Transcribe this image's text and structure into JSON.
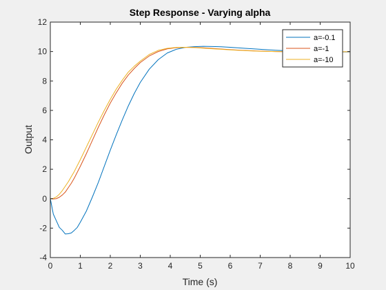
{
  "chart_data": {
    "type": "line",
    "title": "Step Response - Varying alpha",
    "xlabel": "Time (s)",
    "ylabel": "Output",
    "xlim": [
      0,
      10
    ],
    "ylim": [
      -4,
      12
    ],
    "xticks": [
      "0",
      "1",
      "2",
      "3",
      "4",
      "5",
      "6",
      "7",
      "8",
      "9",
      "10"
    ],
    "yticks": [
      "-4",
      "-2",
      "0",
      "2",
      "4",
      "6",
      "8",
      "10",
      "12"
    ],
    "grid": false,
    "legend_position": "top-right",
    "series": [
      {
        "name": "a=-0.1",
        "color": "#0072bd",
        "x": [
          0,
          0.1,
          0.2,
          0.3,
          0.4,
          0.5,
          0.6,
          0.7,
          0.8,
          0.9,
          1.0,
          1.2,
          1.4,
          1.6,
          1.8,
          2.0,
          2.2,
          2.4,
          2.6,
          2.8,
          3.0,
          3.3,
          3.6,
          3.9,
          4.2,
          4.5,
          4.8,
          5.1,
          5.4,
          5.7,
          6.0,
          6.5,
          7.0,
          7.5,
          8.0,
          8.5,
          9.0,
          9.5,
          10.0
        ],
        "y": [
          0,
          -1.05,
          -1.5,
          -1.95,
          -2.15,
          -2.4,
          -2.38,
          -2.33,
          -2.15,
          -1.95,
          -1.6,
          -0.85,
          0.1,
          1.1,
          2.2,
          3.3,
          4.35,
          5.35,
          6.3,
          7.15,
          7.9,
          8.8,
          9.45,
          9.9,
          10.15,
          10.28,
          10.33,
          10.35,
          10.34,
          10.32,
          10.29,
          10.22,
          10.15,
          10.09,
          10.04,
          10.0,
          9.98,
          9.97,
          9.97
        ]
      },
      {
        "name": "a=-1",
        "color": "#d95319",
        "x": [
          0,
          0.1,
          0.2,
          0.3,
          0.4,
          0.5,
          0.6,
          0.7,
          0.8,
          1.0,
          1.2,
          1.4,
          1.6,
          1.8,
          2.0,
          2.2,
          2.4,
          2.6,
          2.8,
          3.0,
          3.3,
          3.6,
          3.9,
          4.2,
          4.5,
          4.8,
          5.1,
          5.4,
          5.7,
          6.0,
          6.5,
          7.0,
          7.5,
          8.0,
          8.5,
          9.0,
          9.5,
          10.0
        ],
        "y": [
          0,
          -0.02,
          0.0,
          0.1,
          0.25,
          0.45,
          0.75,
          1.05,
          1.4,
          2.2,
          3.05,
          3.95,
          4.85,
          5.7,
          6.5,
          7.2,
          7.85,
          8.4,
          8.85,
          9.25,
          9.7,
          10.0,
          10.18,
          10.26,
          10.29,
          10.28,
          10.25,
          10.21,
          10.17,
          10.13,
          10.07,
          10.03,
          10.0,
          9.99,
          9.98,
          9.98,
          9.98,
          9.99
        ]
      },
      {
        "name": "a=-10",
        "color": "#edb120",
        "x": [
          0,
          0.1,
          0.2,
          0.3,
          0.4,
          0.5,
          0.6,
          0.7,
          0.8,
          1.0,
          1.2,
          1.4,
          1.6,
          1.8,
          2.0,
          2.2,
          2.4,
          2.6,
          2.8,
          3.0,
          3.3,
          3.6,
          3.9,
          4.2,
          4.5,
          4.8,
          5.1,
          5.4,
          5.7,
          6.0,
          6.5,
          7.0,
          7.5,
          8.0,
          8.5,
          9.0,
          9.5,
          10.0
        ],
        "y": [
          0,
          0.02,
          0.12,
          0.3,
          0.55,
          0.85,
          1.15,
          1.5,
          1.85,
          2.65,
          3.5,
          4.35,
          5.2,
          6.0,
          6.75,
          7.45,
          8.05,
          8.6,
          9.0,
          9.35,
          9.8,
          10.08,
          10.22,
          10.28,
          10.29,
          10.27,
          10.23,
          10.19,
          10.15,
          10.11,
          10.06,
          10.02,
          10.0,
          9.98,
          9.98,
          9.98,
          9.98,
          9.99
        ]
      }
    ]
  }
}
